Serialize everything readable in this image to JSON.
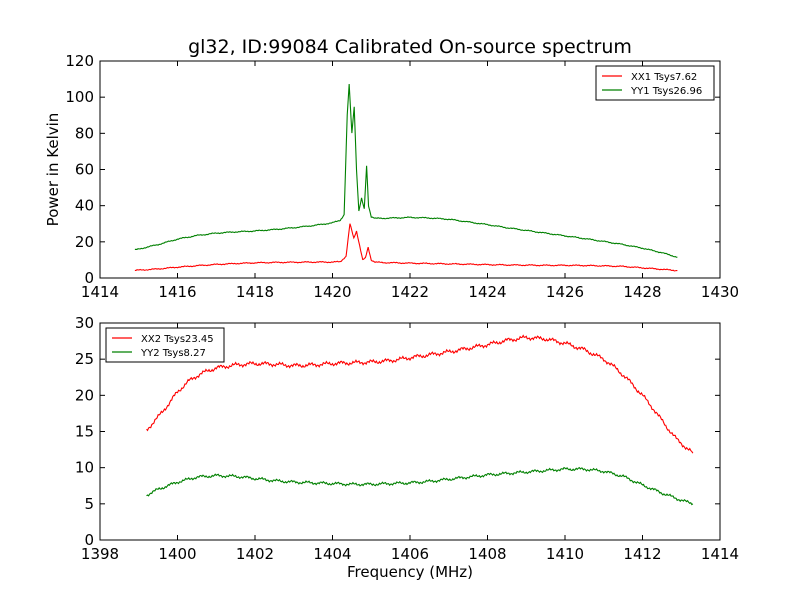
{
  "title": "gl32, ID:99084 Calibrated On-source spectrum",
  "chart_data": [
    {
      "type": "line",
      "xlabel": "",
      "ylabel": "Power in Kelvin",
      "xlim": [
        1414,
        1430
      ],
      "ylim": [
        0,
        120
      ],
      "xticks": [
        1414,
        1416,
        1418,
        1420,
        1422,
        1424,
        1426,
        1428,
        1430
      ],
      "yticks": [
        0,
        20,
        40,
        60,
        80,
        100,
        120
      ],
      "legend_position": "top-right",
      "grid": false,
      "series": [
        {
          "name": "XX1 Tsys7.62",
          "color": "#ff0000",
          "x": [
            1414.9,
            1415.5,
            1416.0,
            1416.5,
            1417.0,
            1417.5,
            1418.0,
            1418.5,
            1419.0,
            1419.5,
            1420.0,
            1420.2,
            1420.35,
            1420.45,
            1420.55,
            1420.62,
            1420.7,
            1420.78,
            1420.85,
            1420.92,
            1421.0,
            1421.1,
            1421.3,
            1421.6,
            1422.0,
            1422.5,
            1423.0,
            1423.5,
            1424.0,
            1424.5,
            1425.0,
            1425.5,
            1426.0,
            1426.5,
            1427.0,
            1427.5,
            1428.0,
            1428.5,
            1428.9
          ],
          "y": [
            4.2,
            5.0,
            6.0,
            6.8,
            7.5,
            8.0,
            8.4,
            8.6,
            8.7,
            8.8,
            8.8,
            9.0,
            12,
            30,
            22,
            26,
            18,
            10,
            11,
            17,
            10,
            8.8,
            8.5,
            8.4,
            8.2,
            8.0,
            7.8,
            7.6,
            7.4,
            7.2,
            7.1,
            7.0,
            7.0,
            6.9,
            6.7,
            6.4,
            5.6,
            4.8,
            4.1
          ]
        },
        {
          "name": "YY1 Tsys26.96",
          "color": "#008000",
          "x": [
            1414.9,
            1415.5,
            1416.0,
            1416.5,
            1417.0,
            1417.5,
            1418.0,
            1418.5,
            1419.0,
            1419.5,
            1420.0,
            1420.2,
            1420.3,
            1420.38,
            1420.43,
            1420.5,
            1420.56,
            1420.62,
            1420.68,
            1420.75,
            1420.82,
            1420.88,
            1420.93,
            1421.0,
            1421.1,
            1421.3,
            1421.6,
            1422.0,
            1422.5,
            1423.0,
            1423.5,
            1424.0,
            1424.5,
            1425.0,
            1425.5,
            1426.0,
            1426.5,
            1427.0,
            1427.5,
            1428.0,
            1428.5,
            1428.9
          ],
          "y": [
            15.5,
            18.5,
            21.5,
            23.5,
            24.8,
            25.5,
            26.0,
            26.8,
            27.8,
            29.0,
            30.5,
            32,
            35,
            90,
            107,
            80,
            95,
            60,
            37,
            44,
            38,
            62,
            40,
            34,
            33,
            33,
            33.2,
            33.5,
            33.2,
            32.5,
            31.0,
            29.5,
            27.8,
            26.3,
            24.8,
            23.3,
            21.8,
            20.2,
            18.5,
            16.5,
            14.0,
            11.5
          ]
        }
      ]
    },
    {
      "type": "line",
      "xlabel": "Frequency (MHz)",
      "ylabel": "",
      "xlim": [
        1398,
        1414
      ],
      "ylim": [
        0,
        30
      ],
      "xticks": [
        1398,
        1400,
        1402,
        1404,
        1406,
        1408,
        1410,
        1412,
        1414
      ],
      "yticks": [
        0,
        5,
        10,
        15,
        20,
        25,
        30
      ],
      "legend_position": "top-left",
      "grid": false,
      "series": [
        {
          "name": "XX2 Tsys23.45",
          "color": "#ff0000",
          "x": [
            1399.2,
            1399.5,
            1399.8,
            1400.0,
            1400.3,
            1400.6,
            1401.0,
            1401.5,
            1402.0,
            1402.5,
            1403.0,
            1403.5,
            1404.0,
            1404.5,
            1405.0,
            1405.5,
            1406.0,
            1406.5,
            1407.0,
            1407.5,
            1408.0,
            1408.5,
            1409.0,
            1409.5,
            1410.0,
            1410.5,
            1411.0,
            1411.3,
            1411.6,
            1412.0,
            1412.3,
            1412.6,
            1412.9,
            1413.3
          ],
          "y": [
            15.2,
            17.0,
            19.0,
            20.5,
            22.0,
            23.0,
            23.8,
            24.2,
            24.4,
            24.3,
            24.1,
            24.2,
            24.4,
            24.5,
            24.6,
            24.8,
            25.2,
            25.6,
            26.0,
            26.5,
            27.0,
            27.6,
            28.0,
            27.8,
            27.2,
            26.3,
            25.0,
            23.8,
            22.3,
            20.0,
            18.0,
            15.8,
            13.8,
            12.0
          ]
        },
        {
          "name": "YY2 Tsys8.27",
          "color": "#008000",
          "x": [
            1399.2,
            1399.5,
            1400.0,
            1400.5,
            1401.0,
            1401.5,
            1402.0,
            1402.5,
            1403.0,
            1403.5,
            1404.0,
            1404.5,
            1405.0,
            1405.5,
            1406.0,
            1406.5,
            1407.0,
            1407.5,
            1408.0,
            1408.5,
            1409.0,
            1409.5,
            1410.0,
            1410.5,
            1411.0,
            1411.5,
            1412.0,
            1412.5,
            1413.0,
            1413.3
          ],
          "y": [
            6.2,
            7.0,
            8.0,
            8.7,
            8.9,
            8.8,
            8.5,
            8.2,
            8.0,
            7.9,
            7.8,
            7.7,
            7.7,
            7.8,
            7.9,
            8.1,
            8.4,
            8.7,
            9.0,
            9.2,
            9.4,
            9.6,
            9.8,
            9.8,
            9.5,
            8.8,
            7.6,
            6.5,
            5.5,
            5.0
          ]
        }
      ]
    }
  ]
}
